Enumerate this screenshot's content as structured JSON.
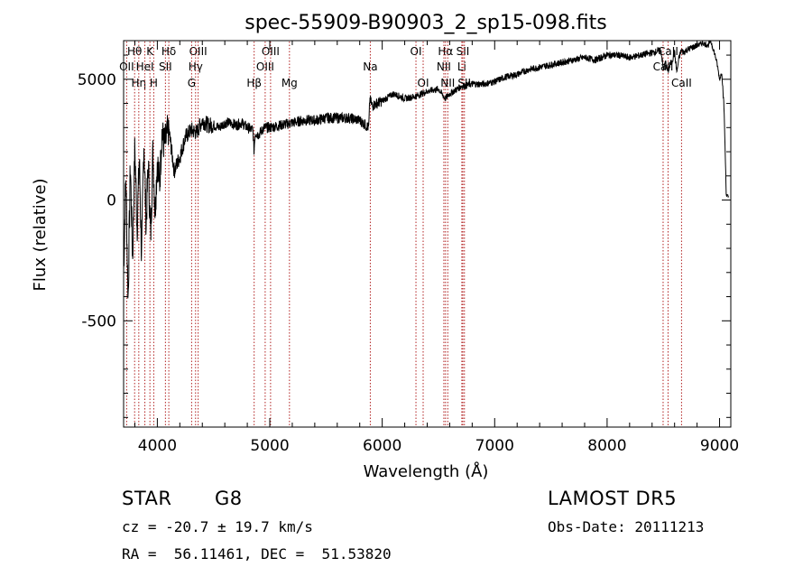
{
  "chart_data": {
    "type": "line",
    "title": "spec-55909-B90903_2_sp15-098.fits",
    "xlabel": "Wavelength (Å)",
    "ylabel": "Flux (relative)",
    "xlim": [
      3700,
      9100
    ],
    "ylim": [
      -940,
      660
    ],
    "xticks": [
      "4000",
      "5000",
      "6000",
      "7000",
      "8000",
      "9000"
    ],
    "yticks": [
      "-500",
      "0",
      "5000"
    ],
    "grid": false,
    "legend": "none",
    "line_color": "#000000",
    "marker_color": "#b22222",
    "spectrum": {
      "name": "",
      "x": [
        3700,
        3720,
        3740,
        3760,
        3780,
        3800,
        3820,
        3840,
        3860,
        3880,
        3900,
        3920,
        3940,
        3960,
        3980,
        4000,
        4020,
        4040,
        4060,
        4080,
        4100,
        4150,
        4200,
        4250,
        4300,
        4350,
        4400,
        4450,
        4500,
        4550,
        4600,
        4650,
        4700,
        4750,
        4800,
        4850,
        4860,
        4870,
        4900,
        4950,
        5000,
        5100,
        5200,
        5300,
        5400,
        5500,
        5600,
        5700,
        5800,
        5880,
        5890,
        5910,
        5950,
        6000,
        6100,
        6200,
        6300,
        6400,
        6500,
        6560,
        6600,
        6700,
        6800,
        6900,
        7000,
        7100,
        7200,
        7300,
        7400,
        7500,
        7600,
        7700,
        7800,
        7900,
        8000,
        8100,
        8200,
        8300,
        8400,
        8480,
        8500,
        8520,
        8540,
        8560,
        8580,
        8600,
        8620,
        8640,
        8660,
        8680,
        8700,
        8750,
        8800,
        8850,
        8900,
        8920,
        8940,
        8960,
        8980,
        9000,
        9020,
        9040,
        9060,
        9080
      ],
      "y": [
        -300,
        100,
        -420,
        150,
        -250,
        220,
        -120,
        180,
        -250,
        250,
        -100,
        150,
        -160,
        200,
        -50,
        170,
        60,
        280,
        230,
        250,
        300,
        120,
        180,
        260,
        290,
        280,
        330,
        310,
        310,
        300,
        320,
        320,
        310,
        320,
        300,
        290,
        200,
        280,
        270,
        300,
        300,
        310,
        320,
        330,
        330,
        340,
        340,
        340,
        330,
        300,
        420,
        390,
        400,
        410,
        440,
        420,
        430,
        450,
        460,
        420,
        440,
        470,
        480,
        480,
        490,
        510,
        520,
        540,
        550,
        560,
        570,
        580,
        590,
        580,
        600,
        600,
        590,
        600,
        610,
        620,
        540,
        570,
        530,
        560,
        580,
        610,
        530,
        590,
        620,
        610,
        620,
        630,
        640,
        650,
        640,
        660,
        630,
        600,
        560,
        500,
        530,
        380,
        20,
        10
      ]
    },
    "line_markers": [
      {
        "name": "Hθ",
        "x": 3798,
        "row": 0
      },
      {
        "name": "OII",
        "x": 3727,
        "row": 1
      },
      {
        "name": "Hη",
        "x": 3835,
        "row": 2
      },
      {
        "name": "K",
        "x": 3934,
        "row": 0
      },
      {
        "name": "HeI",
        "x": 3889,
        "row": 1
      },
      {
        "name": "H",
        "x": 3968,
        "row": 2
      },
      {
        "name": "Hδ",
        "x": 4102,
        "row": 0
      },
      {
        "name": "SII",
        "x": 4072,
        "row": 1
      },
      {
        "name": "OIII",
        "x": 4363,
        "row": 0
      },
      {
        "name": "Hγ",
        "x": 4340,
        "row": 1
      },
      {
        "name": "G",
        "x": 4305,
        "row": 2
      },
      {
        "name": "Hβ",
        "x": 4861,
        "row": 2
      },
      {
        "name": "OIII",
        "x": 5007,
        "row": 0
      },
      {
        "name": "OIII",
        "x": 4959,
        "row": 1
      },
      {
        "name": "Mg",
        "x": 5175,
        "row": 2
      },
      {
        "name": "Na",
        "x": 5894,
        "row": 1
      },
      {
        "name": "OI",
        "x": 6300,
        "row": 0
      },
      {
        "name": "OI",
        "x": 6364,
        "row": 2
      },
      {
        "name": "Hα",
        "x": 6563,
        "row": 0
      },
      {
        "name": "NII",
        "x": 6548,
        "row": 1
      },
      {
        "name": "NII",
        "x": 6583,
        "row": 2
      },
      {
        "name": "SII",
        "x": 6717,
        "row": 0
      },
      {
        "name": "Li",
        "x": 6708,
        "row": 1
      },
      {
        "name": "SII",
        "x": 6731,
        "row": 2
      },
      {
        "name": "CaII",
        "x": 8542,
        "row": 0
      },
      {
        "name": "CaII",
        "x": 8498,
        "row": 1
      },
      {
        "name": "CaII",
        "x": 8662,
        "row": 2
      }
    ]
  },
  "info": {
    "object_class": "STAR",
    "subclass": "G8",
    "survey": "LAMOST DR5",
    "cz": "cz = -20.7 ± 19.7 km/s",
    "obs_date": "Obs-Date: 20111213",
    "coords": "RA =  56.11461, DEC =  51.53820"
  }
}
